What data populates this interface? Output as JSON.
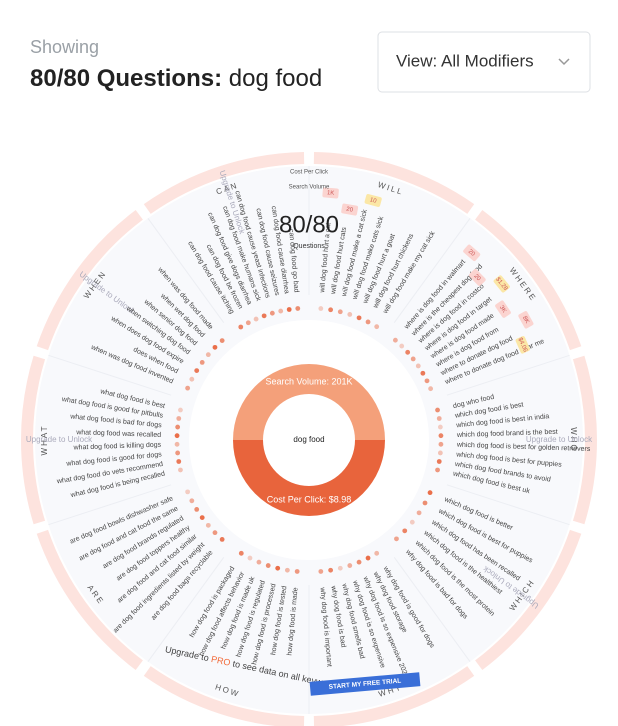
{
  "header": {
    "showing": "Showing",
    "count": "80/80 Questions:",
    "keyword": "dog food",
    "dropdown": "View: All Modifiers"
  },
  "wheel": {
    "legend": [
      "Cost Per Click",
      "Search Volume"
    ],
    "center_count": "80/80",
    "center_label": "Questions",
    "search_volume": "Search Volume: 201K",
    "keyword": "dog food",
    "cost_per_click": "Cost Per Click: $8.98",
    "modifiers": [
      {
        "label": "WILL",
        "chips": [
          "1K",
          "20",
          "10"
        ],
        "questions": [
          "will dog food hurt a cat",
          "will dog food hurt cats",
          "will dog food make a cat sick",
          "will dog food make cats sick",
          "will dog food hurt a goat",
          "will dog food hurt chickens",
          "will dog food make my cat sick"
        ]
      },
      {
        "label": "WHERE",
        "chips": [
          "20",
          "20",
          "$1.28",
          "3K",
          "8K",
          "$4.06"
        ],
        "questions": [
          "where is dog food in walmart",
          "where is the cheapest dog food",
          "where is dog food in costco",
          "where is dog food in target",
          "where is dog food made",
          "where is dog food from",
          "where to donate dog food",
          "where to donate dog food near me"
        ]
      },
      {
        "label": "WHO",
        "upgrade": "Upgrade to Unlock",
        "questions": [
          "dog who food",
          "which dog food is best",
          "which dog food is best in india",
          "which dog food brand is the best",
          "which dog food is best for golden retrievers",
          "which dog food is best for puppies",
          "which dog food brands to avoid",
          "which dog food is best uk"
        ]
      },
      {
        "label": "WHICH",
        "upgrade": "Upgrade to Unlock",
        "questions": [
          "which dog food is better",
          "which dog food is best for puppies",
          "which dog food has been recalled",
          "which dog food is the healthiest",
          "which dog food is the most protein",
          "why dog food is bad for dogs"
        ]
      },
      {
        "label": "WHY",
        "questions": [
          "why dog food is good for dogs",
          "why dog food storage",
          "why dog food is so expensive 2023",
          "why dog food is so expensive",
          "why dog food smells bad",
          "why dog food is bad",
          "why dog food is important"
        ]
      },
      {
        "label": "HOW",
        "questions": [
          "how dog food is made",
          "how dog food is tested",
          "how dog food is processed",
          "how dog food is regulated",
          "how dog food is made uk",
          "how dog food affects behavior",
          "how dog food is packaged"
        ]
      },
      {
        "label": "ARE",
        "questions": [
          "are dog food bags recyclable",
          "are dog food ingredients listed by weight",
          "are dog food and cat food similar",
          "are dog food toppers healthy",
          "are dog food brands regulated",
          "are dog food and cat food the same",
          "are dog food bowls dishwasher safe"
        ]
      },
      {
        "label": "WHAT",
        "upgrade": "Upgrade to Unlock",
        "questions": [
          "what dog food is being recalled",
          "what dog food do vets recommend",
          "what dog food is good for dogs",
          "what dog food is killing dogs",
          "what dog food was recalled",
          "what dog food is bad for dogs",
          "what dog food is good for pitbulls",
          "what dog food is best"
        ]
      },
      {
        "label": "WHEN",
        "upgrade": "Upgrade to Unlock",
        "questions": [
          "when was dog food invented",
          "does when food",
          "when does dog food expire",
          "when switching dog food",
          "when senior dog food",
          "when wet dog food",
          "when was dog food made"
        ]
      },
      {
        "label": "CAN",
        "upgrade": "Upgrade to Unlock",
        "questions": [
          "can dog food cause itching",
          "can dog food be frozen",
          "can dog food give dogs diarrhea",
          "can dog food make humans sick",
          "can dog food cause yeast infections",
          "can dog food cause seizures",
          "can dog food cause diarrhea",
          "can dog food go bad"
        ]
      }
    ]
  },
  "upgrade_banner": {
    "before": "Upgrade to",
    "pro": "PRO",
    "after": "to see data on all keywords"
  },
  "cta": "START MY FREE TRIAL"
}
